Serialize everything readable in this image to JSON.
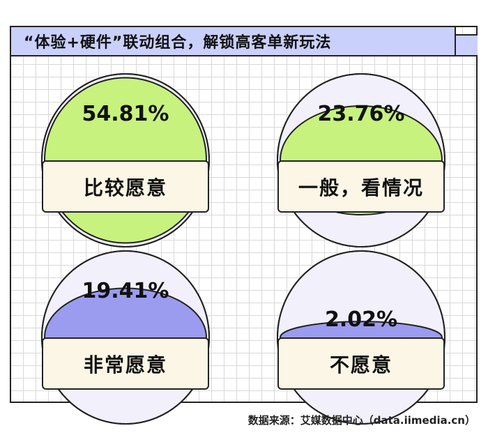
{
  "title": "“体验+硬件”联动组合，解锁高客单新玩法",
  "source": "数据来源：艾媒数据中心（data.iimedia.cn）",
  "colors": {
    "dome_bg": "#f1f0fb",
    "accent_green": "#c7f27e",
    "accent_purple": "#9b9cf0",
    "label_bg": "#fcf6e6",
    "title_bg": "#c9d0fb"
  },
  "chart_data": {
    "type": "pie",
    "title": "“体验+硬件”联动组合，解锁高客单新玩法",
    "categories": [
      "比较愿意",
      "一般，看情况",
      "非常愿意",
      "不愿意"
    ],
    "values": [
      54.81,
      23.76,
      19.41,
      2.02
    ],
    "value_labels": [
      "54.81%",
      "23.76%",
      "19.41%",
      "2.02%"
    ],
    "fill_colors": [
      "#c7f27e",
      "#c7f27e",
      "#9b9cf0",
      "#9b9cf0"
    ],
    "unit": "%"
  }
}
